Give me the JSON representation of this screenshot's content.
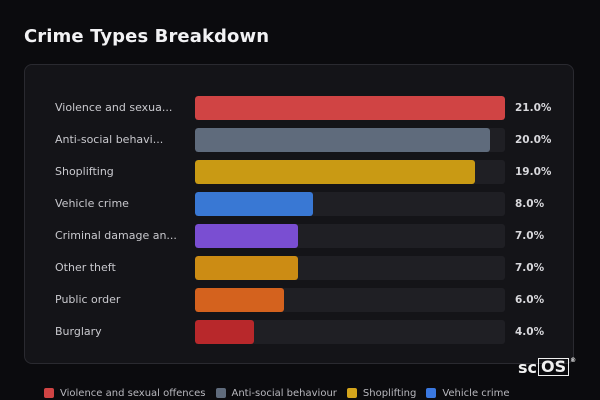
{
  "title": "Crime Types Breakdown",
  "logo": {
    "text": "sc",
    "boxed": "OS",
    "mark": "®"
  },
  "chart_data": {
    "type": "bar",
    "orientation": "horizontal",
    "xlim": [
      0,
      21.0
    ],
    "categories": [
      "Violence and sexua...",
      "Anti-social behavi...",
      "Shoplifting",
      "Vehicle crime",
      "Criminal damage an...",
      "Other theft",
      "Public order",
      "Burglary"
    ],
    "values": [
      21.0,
      20.0,
      19.0,
      8.0,
      7.0,
      7.0,
      6.0,
      4.0
    ],
    "value_labels": [
      "21.0%",
      "20.0%",
      "19.0%",
      "8.0%",
      "7.0%",
      "7.0%",
      "6.0%",
      "4.0%"
    ],
    "colors": [
      "#d04444",
      "#5f6b7c",
      "#c99a14",
      "#3978d4",
      "#7a4ed2",
      "#cc8c14",
      "#d4621e",
      "#b8282b"
    ],
    "legend_position": "bottom",
    "legend": [
      {
        "label": "Violence and sexual offences",
        "color": "#d04444"
      },
      {
        "label": "Anti-social behaviour",
        "color": "#5f6b7c"
      },
      {
        "label": "Shoplifting",
        "color": "#d4a51c"
      },
      {
        "label": "Vehicle crime",
        "color": "#3a78e0"
      }
    ]
  }
}
